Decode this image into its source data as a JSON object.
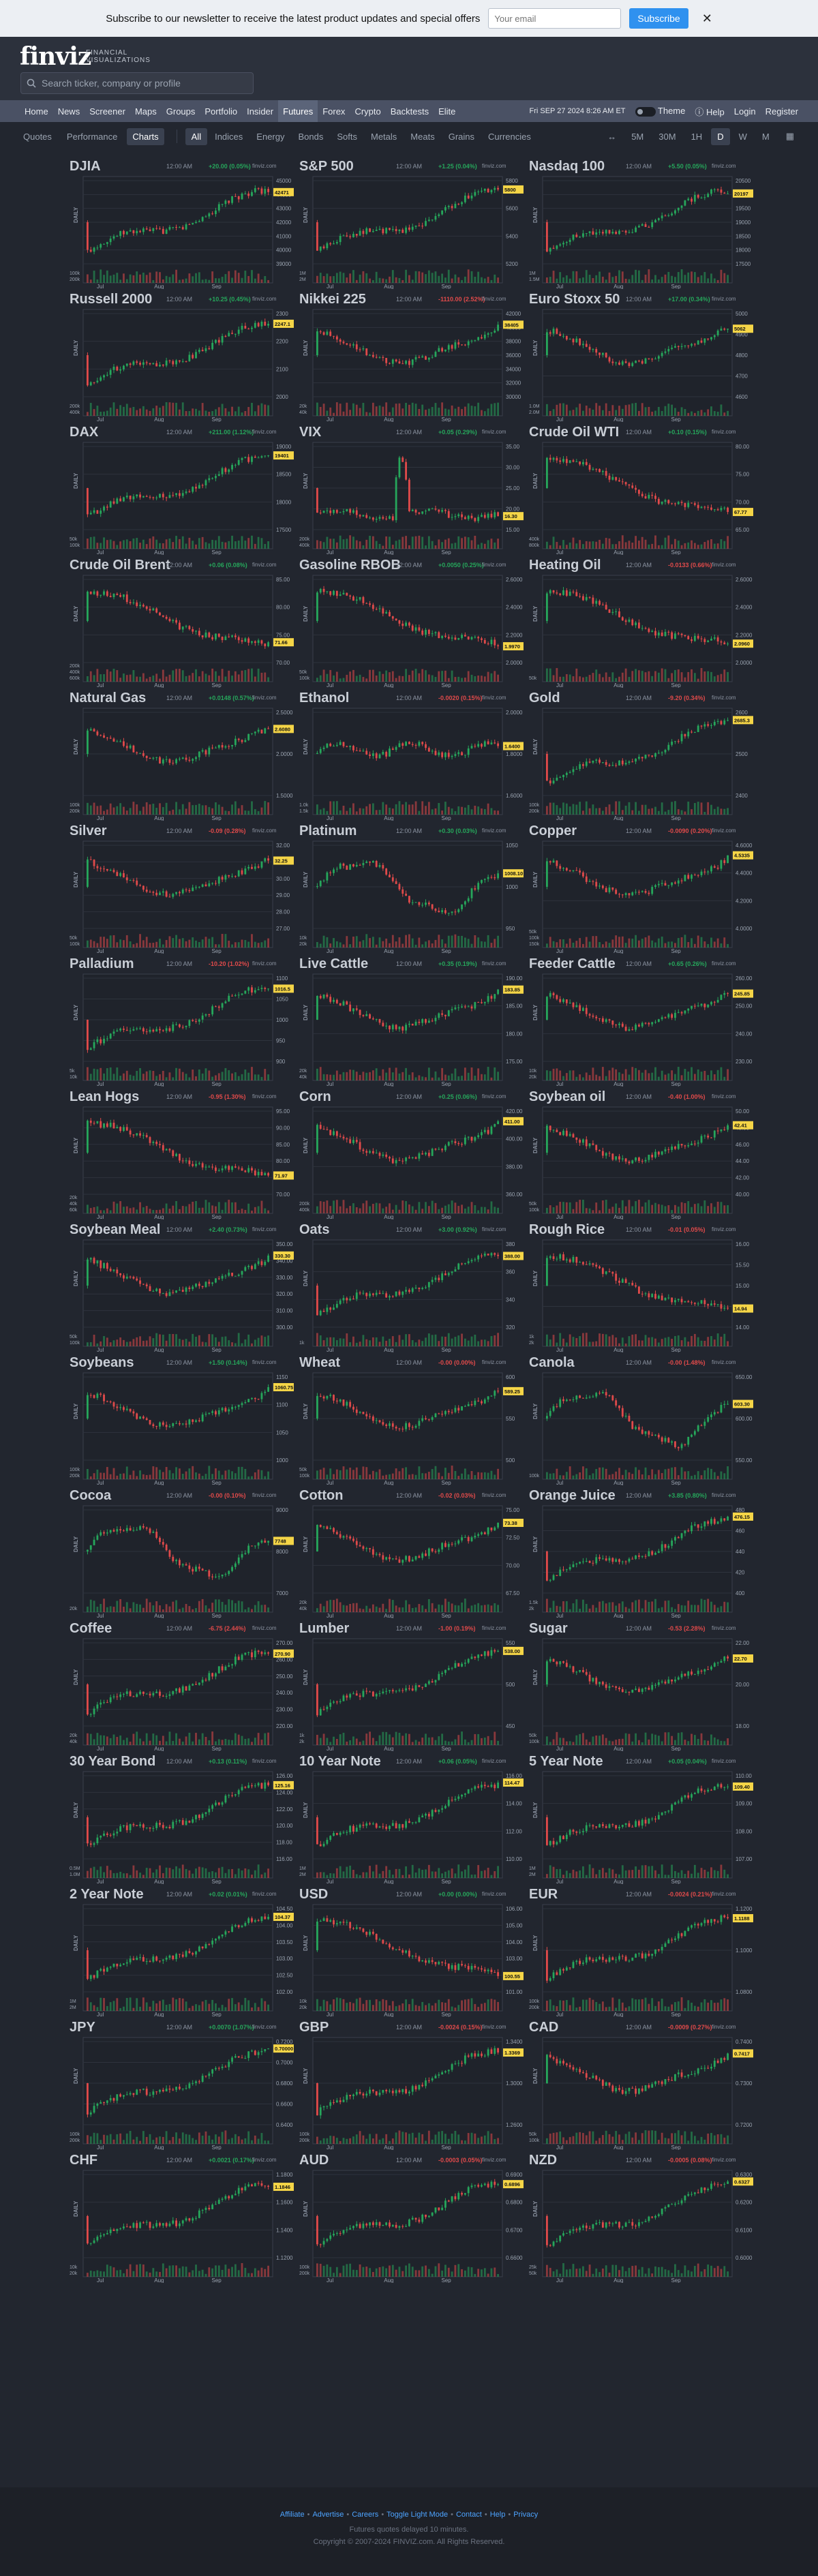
{
  "promo": {
    "text": "Subscribe to our newsletter to receive the latest product updates and special offers",
    "placeholder": "Your email",
    "button": "Subscribe",
    "close": "✕"
  },
  "brand": {
    "logo": "finviz",
    "tagline": "FINANCIAL VISUALIZATIONS"
  },
  "search": {
    "placeholder": "Search ticker, company or profile"
  },
  "nav": {
    "items": [
      "Home",
      "News",
      "Screener",
      "Maps",
      "Groups",
      "Portfolio",
      "Insider",
      "Futures",
      "Forex",
      "Crypto",
      "Backtests",
      "Elite"
    ],
    "active": "Futures",
    "date": "Fri SEP 27 2024 8:26 AM ET",
    "theme": "Theme",
    "help": "Help",
    "login": "Login",
    "register": "Register"
  },
  "tabs": [
    "Quotes",
    "Performance",
    "Charts"
  ],
  "active_tab": "Charts",
  "filters": [
    "All",
    "Indices",
    "Energy",
    "Bonds",
    "Softs",
    "Metals",
    "Meats",
    "Grains",
    "Currencies"
  ],
  "active_filter": "All",
  "timeframes": [
    "↔",
    "5M",
    "30M",
    "1H",
    "D",
    "W",
    "M"
  ],
  "active_timeframe": "D",
  "chart_axis": {
    "daily": "DAILY",
    "months": [
      "Jul",
      "Aug",
      "Sep"
    ],
    "source": "finviz.com"
  },
  "colors": {
    "up": "#26a65b",
    "down": "#e04a4a",
    "bg": "#22262f",
    "price_tag": "#f5d547"
  },
  "footer": {
    "links": [
      "Affiliate",
      "Advertise",
      "Careers",
      "Toggle Light Mode",
      "Contact",
      "Help",
      "Privacy"
    ],
    "line1": "Futures quotes delayed 10 minutes.",
    "line2": "Copyright © 2007-2024 FINVIZ.com. All Rights Reserved."
  },
  "charts": [
    {
      "name": "DJIA",
      "time": "12:00 AM",
      "change": "+20.00 (0.05%)",
      "price": "42471",
      "dir": "up",
      "ticks": [
        "45000",
        "44000",
        "43000",
        "42000",
        "41000",
        "40000",
        "39000"
      ],
      "vol": [
        "200k",
        "100k"
      ],
      "trend": "up"
    },
    {
      "name": "S&P 500",
      "time": "12:00 AM",
      "change": "+1.25 (0.04%)",
      "price": "5800",
      "dir": "up",
      "ticks": [
        "5800",
        "5600",
        "5400",
        "5200"
      ],
      "vol": [
        "2M",
        "1M"
      ],
      "trend": "up"
    },
    {
      "name": "Nasdaq 100",
      "time": "12:00 AM",
      "change": "+5.50 (0.05%)",
      "price": "20197",
      "dir": "up",
      "ticks": [
        "20500",
        "20000",
        "19500",
        "19000",
        "18500",
        "18000",
        "17500"
      ],
      "vol": [
        "1.5M",
        "1M"
      ],
      "trend": "up"
    },
    {
      "name": "Russell 2000",
      "time": "12:00 AM",
      "change": "+10.25 (0.45%)",
      "price": "2247.1",
      "dir": "up",
      "ticks": [
        "2300",
        "2200",
        "2100",
        "2000"
      ],
      "vol": [
        "400k",
        "200k"
      ],
      "trend": "up"
    },
    {
      "name": "Nikkei 225",
      "time": "12:00 AM",
      "change": "-1110.00 (2.52%)",
      "price": "38405",
      "dir": "down",
      "ticks": [
        "42000",
        "40000",
        "38000",
        "36000",
        "34000",
        "32000",
        "30000"
      ],
      "vol": [
        "40k",
        "20k"
      ],
      "trend": "vdip"
    },
    {
      "name": "Euro Stoxx 50",
      "time": "12:00 AM",
      "change": "+17.00 (0.34%)",
      "price": "5062",
      "dir": "up",
      "ticks": [
        "5000",
        "4900",
        "4800",
        "4700",
        "4600"
      ],
      "vol": [
        "2.0M",
        "1.0M"
      ],
      "trend": "vdip"
    },
    {
      "name": "DAX",
      "time": "12:00 AM",
      "change": "+211.00 (1.12%)",
      "price": "19401",
      "dir": "up",
      "ticks": [
        "19000",
        "18500",
        "18000",
        "17500"
      ],
      "vol": [
        "100k",
        "50k"
      ],
      "trend": "up"
    },
    {
      "name": "VIX",
      "time": "12:00 AM",
      "change": "+0.05 (0.29%)",
      "price": "16.30",
      "dir": "up",
      "ticks": [
        "35.00",
        "30.00",
        "25.00",
        "20.00",
        "15.00"
      ],
      "vol": [
        "400k",
        "200k"
      ],
      "trend": "spike"
    },
    {
      "name": "Crude Oil WTI",
      "time": "12:00 AM",
      "change": "+0.10 (0.15%)",
      "price": "67.77",
      "dir": "up",
      "ticks": [
        "80.00",
        "75.00",
        "70.00",
        "65.00"
      ],
      "vol": [
        "800k",
        "400k"
      ],
      "trend": "down"
    },
    {
      "name": "Crude Oil Brent",
      "time": "12:00 AM",
      "change": "+0.06 (0.08%)",
      "price": "71.66",
      "dir": "up",
      "ticks": [
        "85.00",
        "80.00",
        "75.00",
        "70.00"
      ],
      "vol": [
        "600k",
        "400k",
        "200k"
      ],
      "trend": "down"
    },
    {
      "name": "Gasoline RBOB",
      "time": "12:00 AM",
      "change": "+0.0050 (0.25%)",
      "price": "1.9970",
      "dir": "up",
      "ticks": [
        "2.6000",
        "2.4000",
        "2.2000",
        "2.0000"
      ],
      "vol": [
        "100k",
        "50k"
      ],
      "trend": "down"
    },
    {
      "name": "Heating Oil",
      "time": "12:00 AM",
      "change": "-0.0133 (0.66%)",
      "price": "2.0960",
      "dir": "down",
      "ticks": [
        "2.6000",
        "2.4000",
        "2.2000",
        "2.0000"
      ],
      "vol": [
        "50k"
      ],
      "trend": "down"
    },
    {
      "name": "Natural Gas",
      "time": "12:00 AM",
      "change": "+0.0148 (0.57%)",
      "price": "2.6080",
      "dir": "up",
      "ticks": [
        "2.5000",
        "2.0000",
        "1.5000"
      ],
      "vol": [
        "200k",
        "100k"
      ],
      "trend": "vdip"
    },
    {
      "name": "Ethanol",
      "time": "12:00 AM",
      "change": "-0.0020 (0.15%)",
      "price": "1.6400",
      "dir": "down",
      "ticks": [
        "2.0000",
        "1.8000",
        "1.6000"
      ],
      "vol": [
        "1.5k",
        "1.0k"
      ],
      "trend": "flat"
    },
    {
      "name": "Gold",
      "time": "12:00 AM",
      "change": "-9.20 (0.34%)",
      "price": "2685.3",
      "dir": "down",
      "ticks": [
        "2600",
        "2500",
        "2400"
      ],
      "vol": [
        "200k",
        "100k"
      ],
      "trend": "up"
    },
    {
      "name": "Silver",
      "time": "12:00 AM",
      "change": "-0.09 (0.28%)",
      "price": "32.25",
      "dir": "down",
      "ticks": [
        "32.00",
        "31.00",
        "30.00",
        "29.00",
        "28.00",
        "27.00"
      ],
      "vol": [
        "100k",
        "50k"
      ],
      "trend": "vdip"
    },
    {
      "name": "Platinum",
      "time": "12:00 AM",
      "change": "+0.30 (0.03%)",
      "price": "1008.10",
      "dir": "up",
      "ticks": [
        "1050",
        "1000",
        "950"
      ],
      "vol": [
        "20k",
        "10k"
      ],
      "trend": "wave"
    },
    {
      "name": "Copper",
      "time": "12:00 AM",
      "change": "-0.0090 (0.20%)",
      "price": "4.5335",
      "dir": "down",
      "ticks": [
        "4.6000",
        "4.4000",
        "4.2000",
        "4.0000"
      ],
      "vol": [
        "150k",
        "100k",
        "50k"
      ],
      "trend": "vdip"
    },
    {
      "name": "Palladium",
      "time": "12:00 AM",
      "change": "-10.20 (1.02%)",
      "price": "1016.5",
      "dir": "down",
      "ticks": [
        "1100",
        "1050",
        "1000",
        "950",
        "900"
      ],
      "vol": [
        "10k",
        "5k"
      ],
      "trend": "up"
    },
    {
      "name": "Live Cattle",
      "time": "12:00 AM",
      "change": "+0.35 (0.19%)",
      "price": "183.85",
      "dir": "up",
      "ticks": [
        "190.00",
        "185.00",
        "180.00",
        "175.00"
      ],
      "vol": [
        "40k",
        "20k"
      ],
      "trend": "vdip"
    },
    {
      "name": "Feeder Cattle",
      "time": "12:00 AM",
      "change": "+0.65 (0.26%)",
      "price": "245.85",
      "dir": "up",
      "ticks": [
        "260.00",
        "250.00",
        "240.00",
        "230.00"
      ],
      "vol": [
        "20k",
        "10k"
      ],
      "trend": "vdip"
    },
    {
      "name": "Lean Hogs",
      "time": "12:00 AM",
      "change": "-0.95 (1.30%)",
      "price": "71.97",
      "dir": "down",
      "ticks": [
        "95.00",
        "90.00",
        "85.00",
        "80.00",
        "75.00",
        "70.00"
      ],
      "vol": [
        "60k",
        "40k",
        "20k"
      ],
      "trend": "down"
    },
    {
      "name": "Corn",
      "time": "12:00 AM",
      "change": "+0.25 (0.06%)",
      "price": "411.00",
      "dir": "up",
      "ticks": [
        "420.00",
        "400.00",
        "380.00",
        "360.00"
      ],
      "vol": [
        "400k",
        "200k"
      ],
      "trend": "vdip"
    },
    {
      "name": "Soybean oil",
      "time": "12:00 AM",
      "change": "-0.40 (1.00%)",
      "price": "42.41",
      "dir": "down",
      "ticks": [
        "50.00",
        "48.00",
        "46.00",
        "44.00",
        "42.00",
        "40.00"
      ],
      "vol": [
        "100k",
        "50k"
      ],
      "trend": "vdip"
    },
    {
      "name": "Soybean Meal",
      "time": "12:00 AM",
      "change": "+2.40 (0.73%)",
      "price": "330.30",
      "dir": "up",
      "ticks": [
        "350.00",
        "340.00",
        "330.00",
        "320.00",
        "310.00",
        "300.00"
      ],
      "vol": [
        "100k",
        "50k"
      ],
      "trend": "vdip"
    },
    {
      "name": "Oats",
      "time": "12:00 AM",
      "change": "+3.00 (0.92%)",
      "price": "388.00",
      "dir": "up",
      "ticks": [
        "380",
        "360",
        "340",
        "320"
      ],
      "vol": [
        "1k"
      ],
      "trend": "up"
    },
    {
      "name": "Rough Rice",
      "time": "12:00 AM",
      "change": "-0.01 (0.05%)",
      "price": "14.94",
      "dir": "down",
      "ticks": [
        "16.00",
        "15.50",
        "15.00",
        "14.50",
        "14.00"
      ],
      "vol": [
        "2k",
        "1k"
      ],
      "trend": "down"
    },
    {
      "name": "Soybeans",
      "time": "12:00 AM",
      "change": "+1.50 (0.14%)",
      "price": "1060.75",
      "dir": "up",
      "ticks": [
        "1150",
        "1100",
        "1050",
        "1000"
      ],
      "vol": [
        "200k",
        "100k"
      ],
      "trend": "vdip"
    },
    {
      "name": "Wheat",
      "time": "12:00 AM",
      "change": "-0.00 (0.00%)",
      "price": "589.25",
      "dir": "down",
      "ticks": [
        "600",
        "550",
        "500"
      ],
      "vol": [
        "100k",
        "50k"
      ],
      "trend": "vdip"
    },
    {
      "name": "Canola",
      "time": "12:00 AM",
      "change": "-0.00 (1.48%)",
      "price": "603.30",
      "dir": "down",
      "ticks": [
        "650.00",
        "600.00",
        "550.00"
      ],
      "vol": [
        "100k"
      ],
      "trend": "wave"
    },
    {
      "name": "Cocoa",
      "time": "12:00 AM",
      "change": "-0.00 (0.10%)",
      "price": "7748",
      "dir": "down",
      "ticks": [
        "9000",
        "8000",
        "7000"
      ],
      "vol": [
        "20k"
      ],
      "trend": "wave"
    },
    {
      "name": "Cotton",
      "time": "12:00 AM",
      "change": "-0.02 (0.03%)",
      "price": "73.38",
      "dir": "down",
      "ticks": [
        "75.00",
        "72.50",
        "70.00",
        "67.50"
      ],
      "vol": [
        "40k",
        "20k"
      ],
      "trend": "vdip"
    },
    {
      "name": "Orange Juice",
      "time": "12:00 AM",
      "change": "+3.85 (0.80%)",
      "price": "476.15",
      "dir": "up",
      "ticks": [
        "480",
        "460",
        "440",
        "420",
        "400"
      ],
      "vol": [
        "2k",
        "1.5k"
      ],
      "trend": "up"
    },
    {
      "name": "Coffee",
      "time": "12:00 AM",
      "change": "-6.75 (2.44%)",
      "price": "270.90",
      "dir": "down",
      "ticks": [
        "270.00",
        "260.00",
        "250.00",
        "240.00",
        "230.00",
        "220.00"
      ],
      "vol": [
        "40k",
        "20k"
      ],
      "trend": "up"
    },
    {
      "name": "Lumber",
      "time": "12:00 AM",
      "change": "-1.00 (0.19%)",
      "price": "538.00",
      "dir": "down",
      "ticks": [
        "550",
        "500",
        "450"
      ],
      "vol": [
        "2k",
        "1k"
      ],
      "trend": "up"
    },
    {
      "name": "Sugar",
      "time": "12:00 AM",
      "change": "-0.53 (2.28%)",
      "price": "22.70",
      "dir": "down",
      "ticks": [
        "22.00",
        "20.00",
        "18.00"
      ],
      "vol": [
        "100k",
        "50k"
      ],
      "trend": "vdip"
    },
    {
      "name": "30 Year Bond",
      "time": "12:00 AM",
      "change": "+0.13 (0.11%)",
      "price": "125.16",
      "dir": "up",
      "ticks": [
        "126.00",
        "124.00",
        "122.00",
        "120.00",
        "118.00",
        "116.00"
      ],
      "vol": [
        "1.0M",
        "0.5M"
      ],
      "trend": "up"
    },
    {
      "name": "10 Year Note",
      "time": "12:00 AM",
      "change": "+0.06 (0.05%)",
      "price": "114.47",
      "dir": "up",
      "ticks": [
        "116.00",
        "114.00",
        "112.00",
        "110.00"
      ],
      "vol": [
        "2M",
        "1M"
      ],
      "trend": "up"
    },
    {
      "name": "5 Year Note",
      "time": "12:00 AM",
      "change": "+0.05 (0.04%)",
      "price": "109.40",
      "dir": "up",
      "ticks": [
        "110.00",
        "109.00",
        "108.00",
        "107.00"
      ],
      "vol": [
        "2M",
        "1M"
      ],
      "trend": "up"
    },
    {
      "name": "2 Year Note",
      "time": "12:00 AM",
      "change": "+0.02 (0.01%)",
      "price": "104.37",
      "dir": "up",
      "ticks": [
        "104.50",
        "104.00",
        "103.50",
        "103.00",
        "102.50",
        "102.00"
      ],
      "vol": [
        "2M",
        "1M"
      ],
      "trend": "up"
    },
    {
      "name": "USD",
      "time": "12:00 AM",
      "change": "+0.00 (0.00%)",
      "price": "100.55",
      "dir": "up",
      "ticks": [
        "106.00",
        "105.00",
        "104.00",
        "103.00",
        "102.00",
        "101.00"
      ],
      "vol": [
        "20k",
        "10k"
      ],
      "trend": "down"
    },
    {
      "name": "EUR",
      "time": "12:00 AM",
      "change": "-0.0024 (0.21%)",
      "price": "1.1188",
      "dir": "down",
      "ticks": [
        "1.1200",
        "1.1000",
        "1.0800"
      ],
      "vol": [
        "200k",
        "100k"
      ],
      "trend": "up"
    },
    {
      "name": "JPY",
      "time": "12:00 AM",
      "change": "+0.0070 (1.07%)",
      "price": "0.70000",
      "dir": "up",
      "ticks": [
        "0.7200",
        "0.7000",
        "0.6800",
        "0.6600",
        "0.6400"
      ],
      "vol": [
        "200k",
        "100k"
      ],
      "trend": "up"
    },
    {
      "name": "GBP",
      "time": "12:00 AM",
      "change": "-0.0024 (0.15%)",
      "price": "1.3369",
      "dir": "down",
      "ticks": [
        "1.3400",
        "1.3000",
        "1.2600"
      ],
      "vol": [
        "200k",
        "100k"
      ],
      "trend": "up"
    },
    {
      "name": "CAD",
      "time": "12:00 AM",
      "change": "-0.0009 (0.27%)",
      "price": "0.7417",
      "dir": "down",
      "ticks": [
        "0.7400",
        "0.7300",
        "0.7200"
      ],
      "vol": [
        "100k",
        "50k"
      ],
      "trend": "vdip"
    },
    {
      "name": "CHF",
      "time": "12:00 AM",
      "change": "+0.0021 (0.17%)",
      "price": "1.1846",
      "dir": "up",
      "ticks": [
        "1.1800",
        "1.1600",
        "1.1400",
        "1.1200"
      ],
      "vol": [
        "20k",
        "10k"
      ],
      "trend": "up"
    },
    {
      "name": "AUD",
      "time": "12:00 AM",
      "change": "-0.0003 (0.05%)",
      "price": "0.6896",
      "dir": "down",
      "ticks": [
        "0.6900",
        "0.6800",
        "0.6700",
        "0.6600"
      ],
      "vol": [
        "200k",
        "100k"
      ],
      "trend": "up"
    },
    {
      "name": "NZD",
      "time": "12:00 AM",
      "change": "-0.0005 (0.08%)",
      "price": "0.6327",
      "dir": "down",
      "ticks": [
        "0.6300",
        "0.6200",
        "0.6100",
        "0.6000"
      ],
      "vol": [
        "50k",
        "25k"
      ],
      "trend": "up"
    }
  ]
}
